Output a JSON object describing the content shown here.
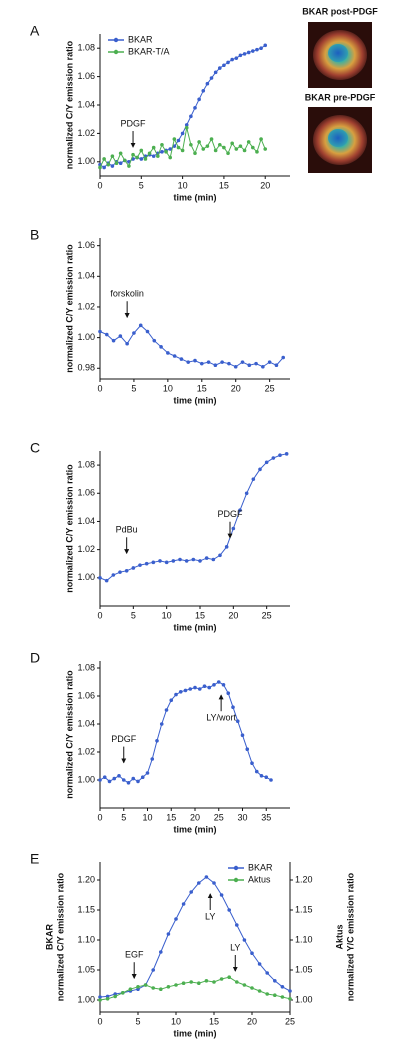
{
  "chart_data": [
    {
      "type": "line",
      "label": "A",
      "xlabel": "time (min)",
      "ylabel": "normalized C/Y emission ratio",
      "xlim": [
        0,
        23
      ],
      "ylim": [
        0.99,
        1.09
      ],
      "xticks": [
        0,
        5,
        10,
        15,
        20
      ],
      "yticks": [
        {
          "value": 1.0,
          "label": "1.00"
        },
        {
          "value": 1.02,
          "label": "1.02"
        },
        {
          "value": 1.04,
          "label": "1.04"
        },
        {
          "value": 1.06,
          "label": "1.06"
        },
        {
          "value": 1.08,
          "label": "1.08"
        }
      ],
      "legend": "top-left",
      "images": [
        "BKAR post-PDGF",
        "BKAR pre-PDGF"
      ],
      "x": [
        0,
        0.5,
        1,
        1.5,
        2,
        2.5,
        3,
        3.5,
        4,
        4.5,
        5,
        5.5,
        6,
        6.5,
        7,
        7.5,
        8,
        8.5,
        9,
        9.5,
        10,
        10.5,
        11,
        11.5,
        12,
        12.5,
        13,
        13.5,
        14,
        14.5,
        15,
        15.5,
        16,
        16.5,
        17,
        17.5,
        18,
        18.5,
        19,
        19.5,
        20
      ],
      "series": [
        {
          "name": "BKAR",
          "color": "#3a5fcd",
          "values": [
            0.998,
            0.996,
            0.999,
            0.997,
            1.0,
            0.999,
            1.001,
            1.0,
            1.002,
            1.003,
            1.002,
            1.004,
            1.005,
            1.004,
            1.006,
            1.007,
            1.008,
            1.009,
            1.011,
            1.015,
            1.02,
            1.026,
            1.032,
            1.038,
            1.044,
            1.05,
            1.055,
            1.059,
            1.063,
            1.066,
            1.068,
            1.07,
            1.072,
            1.073,
            1.075,
            1.076,
            1.077,
            1.078,
            1.079,
            1.08,
            1.082
          ]
        },
        {
          "name": "BKAR-T/A",
          "color": "#4caf50",
          "values": [
            0.996,
            1.002,
            0.998,
            1.004,
            0.999,
            1.006,
            1.001,
            0.997,
            1.005,
            1.003,
            1.008,
            1.002,
            1.006,
            1.01,
            1.004,
            1.012,
            1.007,
            1.003,
            1.016,
            1.01,
            1.008,
            1.024,
            1.012,
            1.006,
            1.014,
            1.009,
            1.011,
            1.016,
            1.008,
            1.012,
            1.01,
            1.006,
            1.013,
            1.009,
            1.011,
            1.008,
            1.014,
            1.01,
            1.007,
            1.016,
            1.009
          ]
        }
      ],
      "annotations": [
        {
          "text": "PDGF",
          "x": 4,
          "y": 1.009,
          "dir": "down"
        }
      ]
    },
    {
      "type": "line",
      "label": "B",
      "xlabel": "time (min)",
      "ylabel": "normalized C/Y emission ratio",
      "xlim": [
        0,
        28
      ],
      "ylim": [
        0.973,
        1.065
      ],
      "xticks": [
        0,
        5,
        10,
        15,
        20,
        25
      ],
      "yticks": [
        {
          "value": 0.98,
          "label": "0.98"
        },
        {
          "value": 1.0,
          "label": "1.00"
        },
        {
          "value": 1.02,
          "label": "1.02"
        },
        {
          "value": 1.04,
          "label": "1.04"
        },
        {
          "value": 1.06,
          "label": "1.06"
        }
      ],
      "x": [
        0,
        1,
        2,
        3,
        4,
        5,
        6,
        7,
        8,
        9,
        10,
        11,
        12,
        13,
        14,
        15,
        16,
        17,
        18,
        19,
        20,
        21,
        22,
        23,
        24,
        25,
        26,
        27
      ],
      "series": [
        {
          "color": "#3a5fcd",
          "values": [
            1.004,
            1.002,
            0.998,
            1.001,
            0.996,
            1.003,
            1.008,
            1.004,
            0.998,
            0.994,
            0.99,
            0.988,
            0.986,
            0.984,
            0.985,
            0.983,
            0.984,
            0.982,
            0.984,
            0.983,
            0.981,
            0.984,
            0.982,
            0.983,
            0.981,
            0.984,
            0.982,
            0.987
          ]
        }
      ],
      "annotations": [
        {
          "text": "forskolin",
          "x": 4,
          "y": 1.012,
          "dir": "down"
        }
      ]
    },
    {
      "type": "line",
      "label": "C",
      "xlabel": "time (min)",
      "ylabel": "normalized C/Y emission ratio",
      "xlim": [
        0,
        28.5
      ],
      "ylim": [
        0.98,
        1.09
      ],
      "xticks": [
        0,
        5,
        10,
        15,
        20,
        25
      ],
      "yticks": [
        {
          "value": 1.0,
          "label": "1.00"
        },
        {
          "value": 1.02,
          "label": "1.02"
        },
        {
          "value": 1.04,
          "label": "1.04"
        },
        {
          "value": 1.06,
          "label": "1.06"
        },
        {
          "value": 1.08,
          "label": "1.08"
        }
      ],
      "x": [
        0,
        1,
        2,
        3,
        4,
        5,
        6,
        7,
        8,
        9,
        10,
        11,
        12,
        13,
        14,
        15,
        16,
        17,
        18,
        19,
        20,
        21,
        22,
        23,
        24,
        25,
        26,
        27,
        28
      ],
      "series": [
        {
          "color": "#3a5fcd",
          "values": [
            1.0,
            0.998,
            1.002,
            1.004,
            1.005,
            1.007,
            1.009,
            1.01,
            1.011,
            1.012,
            1.011,
            1.012,
            1.013,
            1.012,
            1.013,
            1.012,
            1.014,
            1.013,
            1.016,
            1.022,
            1.035,
            1.048,
            1.06,
            1.07,
            1.077,
            1.082,
            1.085,
            1.087,
            1.088
          ]
        }
      ],
      "annotations": [
        {
          "text": "PdBu",
          "x": 4,
          "y": 1.016,
          "dir": "down"
        },
        {
          "text": "PDGF",
          "x": 19.5,
          "y": 1.027,
          "dir": "down"
        }
      ]
    },
    {
      "type": "line",
      "label": "D",
      "xlabel": "time (min)",
      "ylabel": "normalized C/Y emission ratio",
      "xlim": [
        0,
        40
      ],
      "ylim": [
        0.98,
        1.085
      ],
      "xticks": [
        0,
        5,
        10,
        15,
        20,
        25,
        30,
        35
      ],
      "yticks": [
        {
          "value": 1.0,
          "label": "1.00"
        },
        {
          "value": 1.02,
          "label": "1.02"
        },
        {
          "value": 1.04,
          "label": "1.04"
        },
        {
          "value": 1.06,
          "label": "1.06"
        },
        {
          "value": 1.08,
          "label": "1.08"
        }
      ],
      "x": [
        0,
        1,
        2,
        3,
        4,
        5,
        6,
        7,
        8,
        9,
        10,
        11,
        12,
        13,
        14,
        15,
        16,
        17,
        18,
        19,
        20,
        21,
        22,
        23,
        24,
        25,
        26,
        27,
        28,
        29,
        30,
        31,
        32,
        33,
        34,
        35,
        36
      ],
      "series": [
        {
          "color": "#3a5fcd",
          "values": [
            1.0,
            1.002,
            0.999,
            1.001,
            1.003,
            1.0,
            0.998,
            1.001,
            0.999,
            1.002,
            1.005,
            1.015,
            1.028,
            1.04,
            1.05,
            1.057,
            1.061,
            1.063,
            1.064,
            1.065,
            1.066,
            1.065,
            1.067,
            1.066,
            1.068,
            1.07,
            1.068,
            1.062,
            1.052,
            1.042,
            1.032,
            1.022,
            1.012,
            1.006,
            1.003,
            1.002,
            1.0
          ]
        }
      ],
      "annotations": [
        {
          "text": "PDGF",
          "x": 5,
          "y": 1.011,
          "dir": "down"
        },
        {
          "text": "LY/wort",
          "x": 25.5,
          "y": 1.062,
          "dir": "up"
        }
      ]
    },
    {
      "type": "line",
      "label": "E",
      "xlabel": "time (min)",
      "ylabel": [
        "BKAR",
        "normalized C/Y emission ratio"
      ],
      "y2label": [
        "Aktus",
        "normalized Y/C emission ratio"
      ],
      "xlim": [
        0,
        25
      ],
      "ylim": [
        0.98,
        1.23
      ],
      "y2lim": [
        0.98,
        1.23
      ],
      "xticks": [
        0,
        5,
        10,
        15,
        20,
        25
      ],
      "yticks": [
        {
          "value": 1.0,
          "label": "1.00"
        },
        {
          "value": 1.05,
          "label": "1.05"
        },
        {
          "value": 1.1,
          "label": "1.10"
        },
        {
          "value": 1.15,
          "label": "1.15"
        },
        {
          "value": 1.2,
          "label": "1.20"
        }
      ],
      "y2ticks": [
        {
          "value": 1.0,
          "label": "1.00"
        },
        {
          "value": 1.05,
          "label": "1.05"
        },
        {
          "value": 1.1,
          "label": "1.10"
        },
        {
          "value": 1.15,
          "label": "1.15"
        },
        {
          "value": 1.2,
          "label": "1.20"
        }
      ],
      "legend": "top-right",
      "x": [
        0,
        1,
        2,
        3,
        4,
        5,
        6,
        7,
        8,
        9,
        10,
        11,
        12,
        13,
        14,
        15,
        16,
        17,
        18,
        19,
        20,
        21,
        22,
        23,
        24,
        25
      ],
      "series": [
        {
          "name": "BKAR",
          "color": "#3a5fcd",
          "values": [
            1.005,
            1.006,
            1.01,
            1.012,
            1.015,
            1.018,
            1.025,
            1.05,
            1.08,
            1.11,
            1.135,
            1.16,
            1.18,
            1.195,
            1.205,
            1.195,
            1.175,
            1.15,
            1.125,
            1.1,
            1.078,
            1.06,
            1.045,
            1.032,
            1.022,
            1.015
          ]
        },
        {
          "name": "Aktus",
          "color": "#4caf50",
          "axis": "y2",
          "values": [
            1.0,
            1.002,
            1.006,
            1.012,
            1.018,
            1.022,
            1.025,
            1.02,
            1.018,
            1.022,
            1.025,
            1.028,
            1.03,
            1.028,
            1.032,
            1.03,
            1.035,
            1.038,
            1.03,
            1.025,
            1.02,
            1.015,
            1.01,
            1.008,
            1.005,
            1.002
          ]
        }
      ],
      "annotations": [
        {
          "text": "EGF",
          "x": 4.5,
          "y": 1.033,
          "dir": "down"
        },
        {
          "text": "LY",
          "x": 14.5,
          "y": 1.18,
          "dir": "up"
        },
        {
          "text": "LY",
          "x": 17.8,
          "y": 1.045,
          "dir": "down"
        }
      ]
    }
  ]
}
